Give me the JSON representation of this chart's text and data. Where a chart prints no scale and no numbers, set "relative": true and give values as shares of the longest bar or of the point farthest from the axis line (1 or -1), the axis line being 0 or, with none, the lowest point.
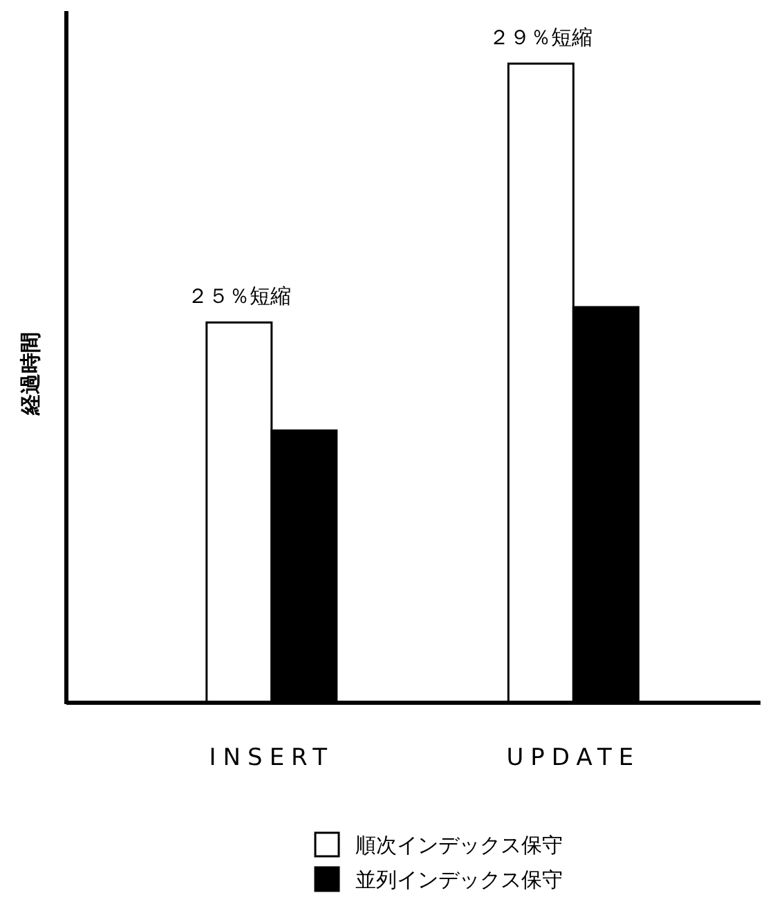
{
  "chart_data": {
    "type": "bar",
    "relative": true,
    "ylabel": "経過時間",
    "categories": [
      "INSERT",
      "UPDATE"
    ],
    "series": [
      {
        "name": "順次インデックス保守",
        "color": "#ffffff",
        "values": [
          0.595,
          1
        ]
      },
      {
        "name": "並列インデックス保守",
        "color": "#000000",
        "values": [
          0.426,
          0.619
        ]
      }
    ],
    "annotations": [
      {
        "text": "２５％短縮",
        "x": "INSERT",
        "y": 0.595
      },
      {
        "text": "２９％短縮",
        "x": "UPDATE",
        "y": 1
      }
    ],
    "legend": "bottom"
  }
}
